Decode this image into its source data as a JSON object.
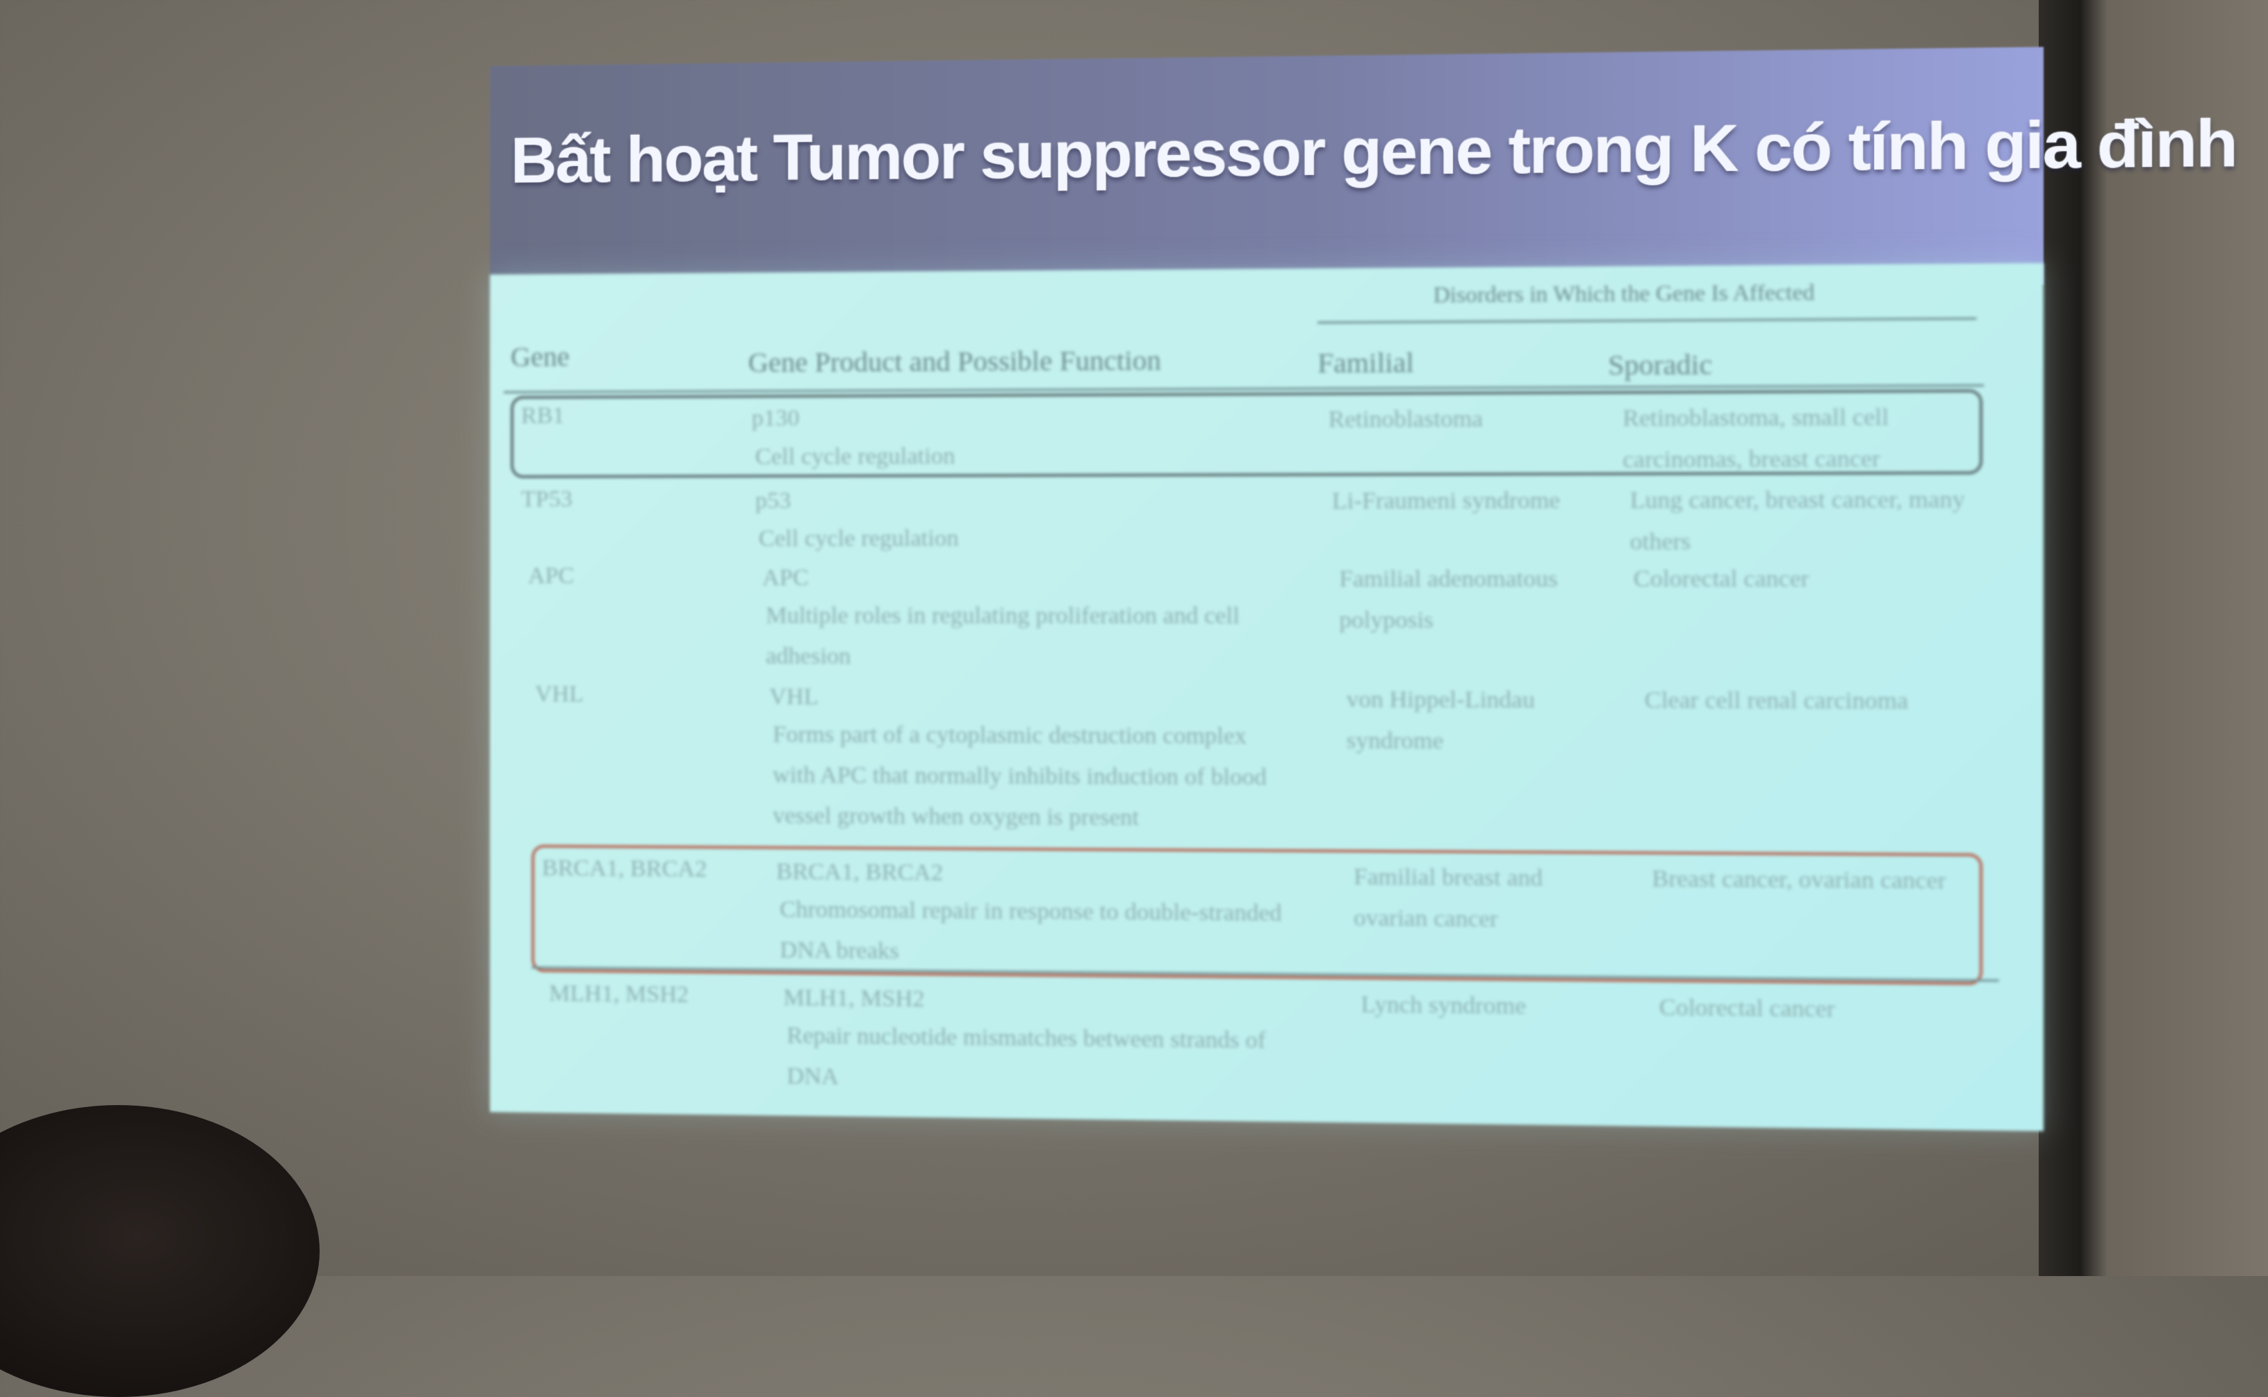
{
  "slide": {
    "title": "Bất hoạt Tumor suppressor gene trong K có tính gia đình"
  },
  "table": {
    "group_header": "Disorders in Which the Gene Is Affected",
    "columns": [
      "Gene",
      "Gene Product and Possible Function",
      "Familial",
      "Sporadic"
    ],
    "rows": [
      {
        "gene": "RB1",
        "product": "p130",
        "function": "Cell cycle regulation",
        "familial": "Retinoblastoma",
        "sporadic": "Retinoblastoma, small cell carcinomas, breast cancer"
      },
      {
        "gene": "TP53",
        "product": "p53",
        "function": "Cell cycle regulation",
        "familial": "Li-Fraumeni syndrome",
        "sporadic": "Lung cancer, breast cancer, many others"
      },
      {
        "gene": "APC",
        "product": "APC",
        "function": "Multiple roles in regulating proliferation and cell adhesion",
        "familial": "Familial adenomatous polyposis",
        "sporadic": "Colorectal cancer"
      },
      {
        "gene": "VHL",
        "product": "VHL",
        "function": "Forms part of a cytoplasmic destruction complex with APC that normally inhibits induction of blood vessel growth when oxygen is present",
        "familial": "von Hippel-Lindau syndrome",
        "sporadic": "Clear cell renal carcinoma"
      },
      {
        "gene": "BRCA1, BRCA2",
        "product": "BRCA1, BRCA2",
        "function": "Chromosomal repair in response to double-stranded DNA breaks",
        "familial": "Familial breast and ovarian cancer",
        "sporadic": "Breast cancer, ovarian cancer"
      },
      {
        "gene": "MLH1, MSH2",
        "product": "MLH1, MSH2",
        "function": "Repair nucleotide mismatches between strands of DNA",
        "familial": "Lynch syndrome",
        "sporadic": "Colorectal cancer"
      }
    ]
  }
}
